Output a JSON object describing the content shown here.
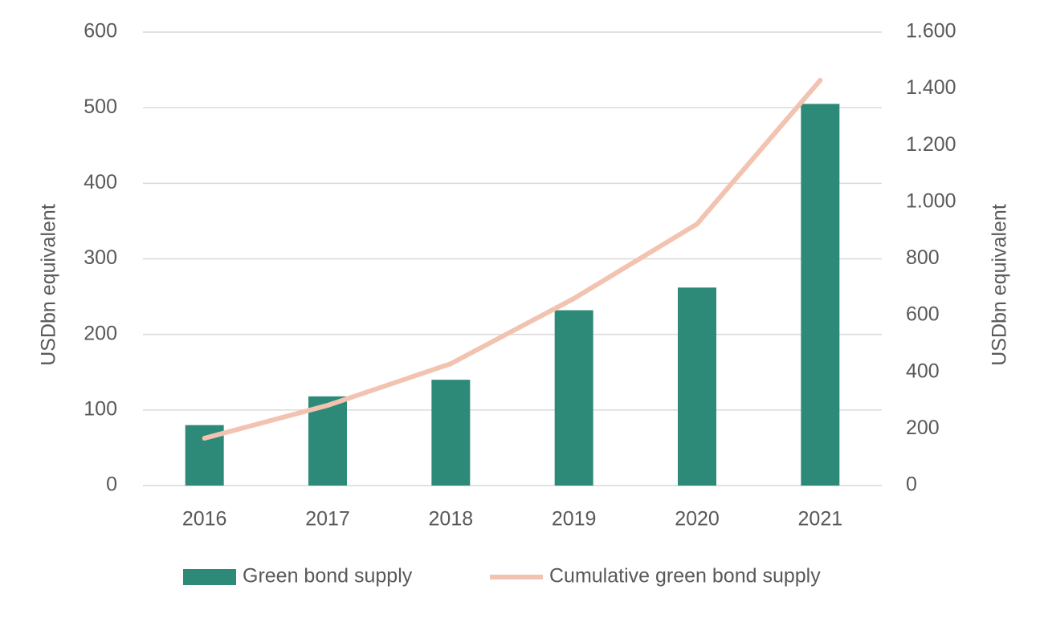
{
  "chart_data": {
    "type": "combo",
    "categories": [
      "2016",
      "2017",
      "2018",
      "2019",
      "2020",
      "2021"
    ],
    "y_label": "USDbn equivalent",
    "y2_label": "USDbn equivalent",
    "series": [
      {
        "name": "Green bond supply",
        "type": "bar",
        "color": "#2e8a78",
        "values": [
          80,
          118,
          140,
          232,
          262,
          505
        ]
      },
      {
        "name": "Cumulative green bond supply",
        "type": "line",
        "axis": "y2",
        "color": "#f2c3b0",
        "values": [
          167,
          283,
          430,
          660,
          923,
          1430
        ]
      }
    ],
    "ylim": [
      0,
      600
    ],
    "yticks": [
      0,
      100,
      200,
      300,
      400,
      500,
      600
    ],
    "y2lim": [
      0,
      1600
    ],
    "y2ticks": [
      0,
      200,
      400,
      600,
      800,
      {
        "value": 1000,
        "label": "1.000"
      },
      {
        "value": 1200,
        "label": "1.200"
      },
      {
        "value": 1400,
        "label": "1.400"
      },
      {
        "value": 1600,
        "label": "1.600"
      }
    ],
    "grid": true,
    "legend": "bottom"
  }
}
